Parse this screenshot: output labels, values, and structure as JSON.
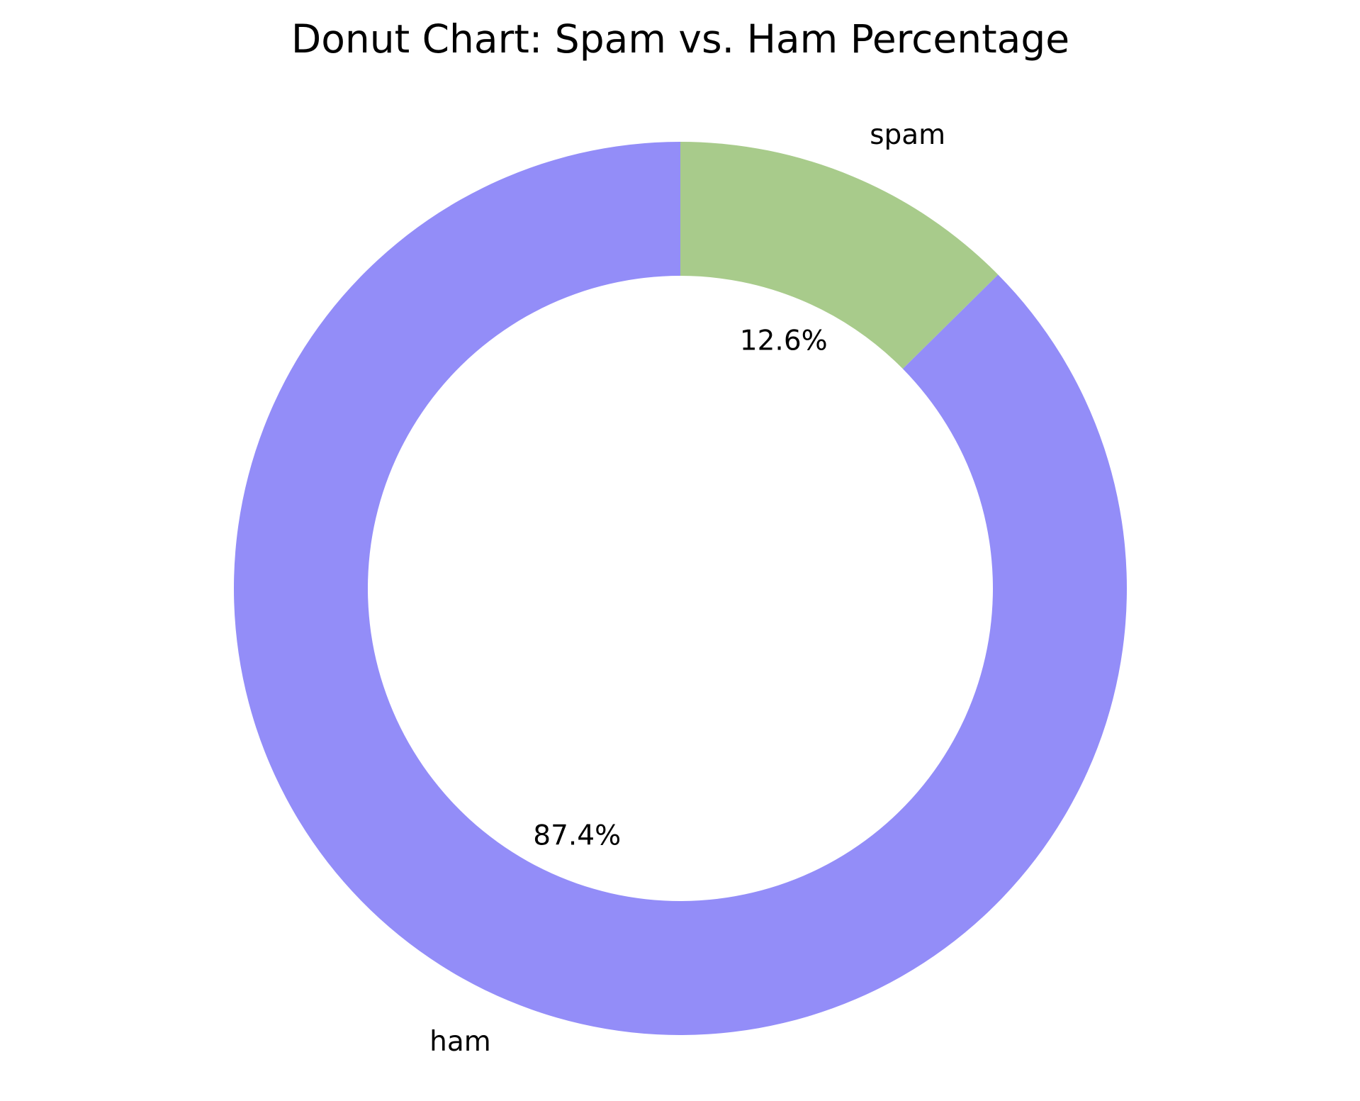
{
  "chart_data": {
    "type": "pie",
    "variant": "donut",
    "title": "Donut Chart: Spam vs. Ham Percentage",
    "slices": [
      {
        "label": "ham",
        "value": 87.4,
        "pct_label": "87.4%",
        "color": "#938df8"
      },
      {
        "label": "spam",
        "value": 12.6,
        "pct_label": "12.6%",
        "color": "#a8cb8b"
      }
    ],
    "start_angle_deg": 90,
    "direction": "counterclockwise",
    "legend": "none"
  }
}
